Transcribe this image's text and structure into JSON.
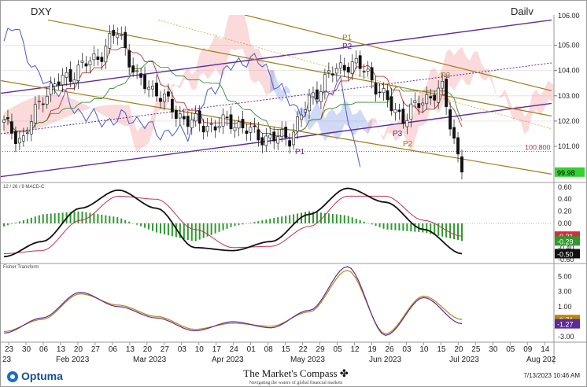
{
  "header": {
    "ticker": "DXY",
    "period": "Daily"
  },
  "price_panel": {
    "y_axis_ticks": [
      "105.00",
      "104.00",
      "103.00",
      "102.00",
      "101.00"
    ],
    "y_axis_ticks_values": [
      105,
      104,
      103,
      102,
      101
    ],
    "top_tick_partial": "106.00",
    "level_label": "100.800",
    "level_value": 100.8,
    "last_price_badge": "99.98",
    "last_price_value": 99.98,
    "annotations": [
      {
        "text": "P1",
        "color": "#a07d1a"
      },
      {
        "text": "P2",
        "color": "#5b2a8c"
      },
      {
        "text": "P3",
        "color": "#a07d1a"
      },
      {
        "text": "P3",
        "color": "#5b2a8c"
      },
      {
        "text": "P2",
        "color": "#a07d1a"
      },
      {
        "text": "P1",
        "color": "#5b2a8c"
      }
    ]
  },
  "macd_panel": {
    "label": "12 / 26 / 9 MACD-C",
    "y_axis_ticks": [
      "0.60",
      "0.40",
      "0.20",
      "0.00",
      "-0.20",
      "-0.40",
      "-0.60"
    ],
    "y_axis_ticks_values": [
      0.6,
      0.4,
      0.2,
      0.0,
      -0.2,
      -0.4,
      -0.6
    ],
    "badges": [
      {
        "text": "-0.21",
        "bg": "#d62e3b",
        "value": -0.21
      },
      {
        "text": "-0.29",
        "bg": "#2e9a2e",
        "value": -0.29
      },
      {
        "text": "-0.50",
        "bg": "#111111",
        "value": -0.5
      }
    ]
  },
  "fisher_panel": {
    "label": "Fisher Transform",
    "y_axis_ticks": [
      "5.00",
      "3.00",
      "1.00",
      "-1.00",
      "-3.00"
    ],
    "y_axis_ticks_values": [
      5,
      3,
      1,
      -1,
      -3
    ],
    "badges": [
      {
        "text": "-0.71",
        "bg": "#b8860b",
        "value": -0.71
      },
      {
        "text": "-1.27",
        "bg": "#5b2a9c",
        "value": -1.27
      }
    ]
  },
  "x_axis": {
    "day_ticks": [
      "23",
      "30",
      "06",
      "13",
      "20",
      "27",
      "06",
      "13",
      "20",
      "27",
      "03",
      "10",
      "17",
      "24",
      "01",
      "08",
      "15",
      "22",
      "29",
      "05",
      "12",
      "19",
      "26",
      "03",
      "10",
      "15",
      "20",
      "25",
      "30",
      "05",
      "09",
      "14"
    ],
    "month_labels": [
      "23",
      "Feb 2023",
      "Mar 2023",
      "Apr 2023",
      "May 2023",
      "Jun 2023",
      "Jul 2023",
      "Aug 202"
    ]
  },
  "chart_data": {
    "type": "line",
    "title": "DXY",
    "xlabel": "",
    "ylabel": "",
    "ylim": [
      99.6,
      106.2
    ],
    "grid": true,
    "x": [
      "Jan 23",
      "Jan 30",
      "Feb 06",
      "Feb 13",
      "Feb 20",
      "Feb 27",
      "Mar 06",
      "Mar 13",
      "Mar 20",
      "Mar 27",
      "Apr 03",
      "Apr 10",
      "Apr 17",
      "Apr 24",
      "May 01",
      "May 08",
      "May 15",
      "May 22",
      "May 29",
      "Jun 05",
      "Jun 12",
      "Jun 19",
      "Jun 26",
      "Jul 03",
      "Jul 10"
    ],
    "series": [
      {
        "values": [
          101.9,
          101.2,
          103.0,
          103.6,
          104.1,
          104.6,
          105.6,
          103.6,
          103.2,
          102.3,
          101.9,
          101.8,
          102.0,
          101.5,
          101.3,
          101.4,
          102.8,
          103.8,
          104.3,
          104.0,
          102.8,
          102.1,
          102.9,
          103.2,
          99.98
        ]
      }
    ],
    "level_line": 100.8,
    "macd": {
      "ylim": [
        -0.65,
        0.65
      ],
      "x": [
        "Jan 23",
        "Feb 06",
        "Feb 20",
        "Mar 06",
        "Mar 20",
        "Apr 03",
        "Apr 17",
        "May 01",
        "May 15",
        "May 29",
        "Jun 12",
        "Jun 26",
        "Jul 10"
      ],
      "series": [
        {
          "values": [
            -0.55,
            -0.3,
            0.25,
            0.55,
            0.25,
            -0.4,
            -0.45,
            -0.3,
            0.15,
            0.58,
            0.35,
            -0.1,
            -0.5
          ]
        },
        {
          "values": [
            -0.5,
            -0.45,
            0.05,
            0.45,
            0.4,
            -0.1,
            -0.4,
            -0.38,
            -0.05,
            0.45,
            0.45,
            0.05,
            -0.21
          ]
        },
        {
          "values": [
            -0.05,
            0.15,
            0.2,
            0.1,
            -0.15,
            -0.3,
            -0.05,
            0.08,
            0.2,
            0.13,
            -0.1,
            -0.15,
            -0.29
          ]
        }
      ]
    },
    "fisher": {
      "ylim": [
        -3.6,
        6.5
      ],
      "x": [
        "Jan 23",
        "Feb 06",
        "Feb 20",
        "Mar 06",
        "Mar 20",
        "Apr 03",
        "Apr 17",
        "May 01",
        "May 15",
        "May 29",
        "Jun 12",
        "Jun 26",
        "Jul 10"
      ],
      "series": [
        {
          "values": [
            -2.5,
            -0.5,
            2.9,
            1.0,
            -0.5,
            -2.2,
            -1.0,
            -1.8,
            0.5,
            6.3,
            -2.8,
            2.2,
            -1.27
          ]
        },
        {
          "values": [
            -2.3,
            -0.7,
            2.7,
            1.2,
            -0.3,
            -2.0,
            -1.2,
            -1.6,
            0.3,
            5.8,
            -2.6,
            2.4,
            -0.71
          ]
        }
      ]
    }
  }
}
